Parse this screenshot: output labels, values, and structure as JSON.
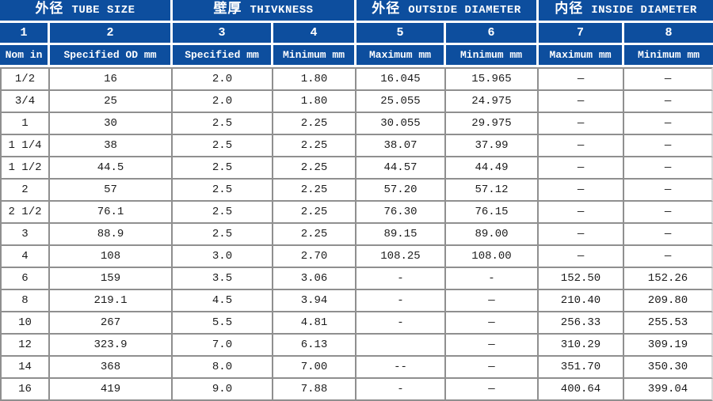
{
  "colors": {
    "header_bg": "#0d4e9e",
    "header_text": "#ffffff",
    "grid_line": "#8f8f8f",
    "cell_bg": "#ffffff",
    "cell_text": "#1c1c1c"
  },
  "table": {
    "groups": [
      {
        "cn": "外径",
        "en": "TUBE SIZE"
      },
      {
        "cn": "壁厚",
        "en": "THIVKNESS"
      },
      {
        "cn": "外径",
        "en": "OUTSIDE DIAMETER"
      },
      {
        "cn": "内径",
        "en": "INSIDE DIAMETER"
      }
    ],
    "column_numbers": [
      "1",
      "2",
      "3",
      "4",
      "5",
      "6",
      "7",
      "8"
    ],
    "column_headers": [
      "Nom in",
      "Specified OD mm",
      "Specified mm",
      "Minimum mm",
      "Maximum mm",
      "Minimum mm",
      "Maximum mm",
      "Minimum mm"
    ],
    "column_keys": [
      "nom-in",
      "specified-od-mm",
      "specified-thickness-mm",
      "minimum-thickness-mm",
      "od-maximum-mm",
      "od-minimum-mm",
      "id-maximum-mm",
      "id-minimum-mm"
    ],
    "rows": [
      [
        "1/2",
        "16",
        "2.0",
        "1.80",
        "16.045",
        "15.965",
        "—",
        "—"
      ],
      [
        "3/4",
        "25",
        "2.0",
        "1.80",
        "25.055",
        "24.975",
        "—",
        "—"
      ],
      [
        "1",
        "30",
        "2.5",
        "2.25",
        "30.055",
        "29.975",
        "—",
        "—"
      ],
      [
        "1 1/4",
        "38",
        "2.5",
        "2.25",
        "38.07",
        "37.99",
        "—",
        "—"
      ],
      [
        "1 1/2",
        "44.5",
        "2.5",
        "2.25",
        "44.57",
        "44.49",
        "—",
        "—"
      ],
      [
        "2",
        "57",
        "2.5",
        "2.25",
        "57.20",
        "57.12",
        "—",
        "—"
      ],
      [
        "2 1/2",
        "76.1",
        "2.5",
        "2.25",
        "76.30",
        "76.15",
        "—",
        "—"
      ],
      [
        "3",
        "88.9",
        "2.5",
        "2.25",
        "89.15",
        "89.00",
        "—",
        "—"
      ],
      [
        "4",
        "108",
        "3.0",
        "2.70",
        "108.25",
        "108.00",
        "—",
        "—"
      ],
      [
        "6",
        "159",
        "3.5",
        "3.06",
        "-",
        "-",
        "152.50",
        "152.26"
      ],
      [
        "8",
        "219.1",
        "4.5",
        "3.94",
        "-",
        "—",
        "210.40",
        "209.80"
      ],
      [
        "10",
        "267",
        "5.5",
        "4.81",
        "-",
        "—",
        "256.33",
        "255.53"
      ],
      [
        "12",
        "323.9",
        "7.0",
        "6.13",
        "",
        "—",
        "310.29",
        "309.19"
      ],
      [
        "14",
        "368",
        "8.0",
        "7.00",
        "--",
        "—",
        "351.70",
        "350.30"
      ],
      [
        "16",
        "419",
        "9.0",
        "7.88",
        "-",
        "—",
        "400.64",
        "399.04"
      ]
    ]
  }
}
